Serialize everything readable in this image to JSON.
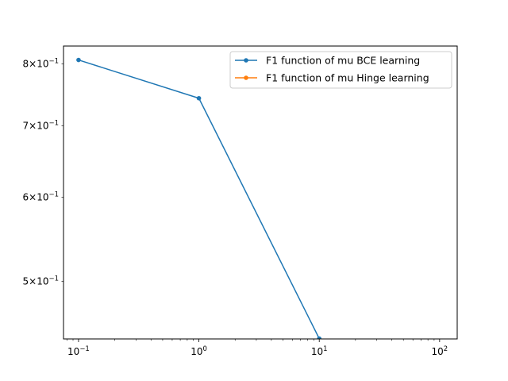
{
  "chart_data": {
    "type": "line",
    "title": "",
    "xlabel": "",
    "ylabel": "",
    "xscale": "log",
    "yscale": "log",
    "xlim": [
      0.075,
      140
    ],
    "ylim": [
      0.4417,
      0.8317
    ],
    "grid": false,
    "legend": "top-right",
    "x_ticks": [
      {
        "value": 0.1,
        "base": "10",
        "exp": "−1"
      },
      {
        "value": 1,
        "base": "10",
        "exp": "0"
      },
      {
        "value": 10,
        "base": "10",
        "exp": "1"
      },
      {
        "value": 100,
        "base": "10",
        "exp": "2"
      }
    ],
    "y_ticks": [
      {
        "value": 0.5,
        "mant": "5",
        "times": "×",
        "base": "10",
        "exp": "−1"
      },
      {
        "value": 0.6,
        "mant": "6",
        "times": "×",
        "base": "10",
        "exp": "−1"
      },
      {
        "value": 0.7,
        "mant": "7",
        "times": "×",
        "base": "10",
        "exp": "−1"
      },
      {
        "value": 0.8,
        "mant": "8",
        "times": "×",
        "base": "10",
        "exp": "−1"
      }
    ],
    "series": [
      {
        "name": "F1 function of mu BCE learning",
        "color": "#1f77b4",
        "x": [
          0.1,
          1,
          10
        ],
        "y": [
          0.807,
          0.743,
          0.442
        ]
      },
      {
        "name": "F1 function of mu Hinge learning",
        "color": "#ff7f0e",
        "x": [],
        "y": []
      }
    ]
  }
}
